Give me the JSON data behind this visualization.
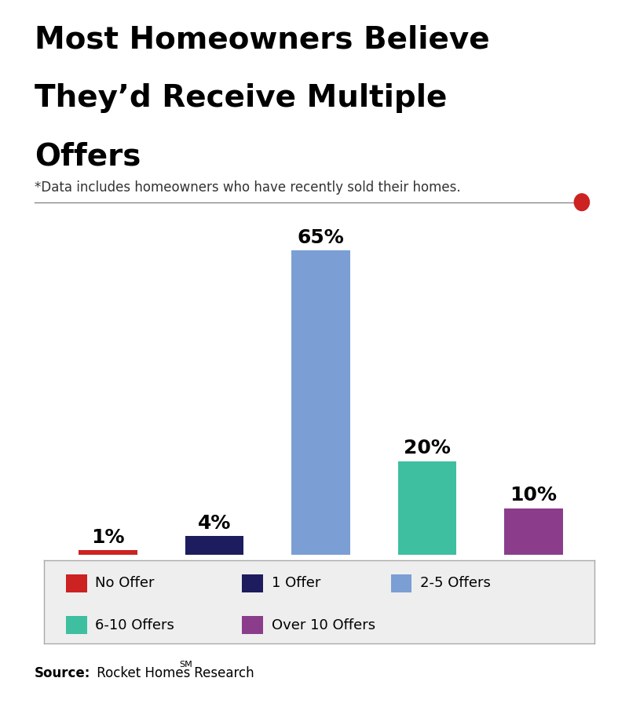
{
  "title_line1": "Most Homeowners Believe",
  "title_line2": "They’d Receive Multiple",
  "title_line3": "Offers",
  "subtitle": "*Data includes homeowners who have recently sold their homes.",
  "categories": [
    "No Offer",
    "1 Offer",
    "2-5 Offers",
    "6-10 Offers",
    "Over 10 Offers"
  ],
  "values": [
    1,
    4,
    65,
    20,
    10
  ],
  "bar_colors": [
    "#cc2222",
    "#1c1c5e",
    "#7b9fd4",
    "#3dbfa0",
    "#8b3d8b"
  ],
  "background_color": "#ffffff",
  "title_fontsize": 28,
  "subtitle_fontsize": 12,
  "bar_label_fontsize": 18,
  "legend_fontsize": 13,
  "source_fontsize": 12,
  "source_text_bold": "Source:",
  "source_text": " Rocket Homes",
  "source_superscript": "SM",
  "source_suffix": " Research",
  "divider_color": "#888888",
  "dot_color": "#cc2222",
  "legend_bg": "#eeeeee",
  "legend_entries": [
    {
      "label": "No Offer",
      "color": "#cc2222"
    },
    {
      "label": "1 Offer",
      "color": "#1c1c5e"
    },
    {
      "label": "2-5 Offers",
      "color": "#7b9fd4"
    },
    {
      "label": "6-10 Offers",
      "color": "#3dbfa0"
    },
    {
      "label": "Over 10 Offers",
      "color": "#8b3d8b"
    }
  ]
}
